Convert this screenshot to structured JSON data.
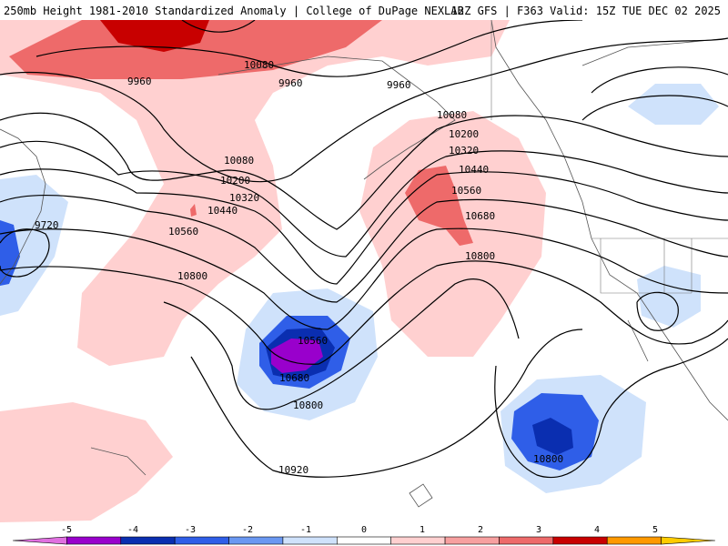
{
  "header": {
    "left": "250mb Height 1981-2010 Standardized Anomaly | College of DuPage NEXLAB",
    "right": "12Z GFS | F363 Valid: 15Z TUE DEC 02 2025"
  },
  "colorbar": {
    "ticks": [
      "-5",
      "-4",
      "-3",
      "-2",
      "-1",
      "0",
      "1",
      "2",
      "3",
      "4",
      "5"
    ],
    "colors": [
      "#e070e0",
      "#9900cc",
      "#0a2eb0",
      "#2f5ee8",
      "#6a98f2",
      "#cfe2fb",
      "#ffffff",
      "#ffd0d0",
      "#f7a0a0",
      "#ee6a6a",
      "#c80000",
      "#ff9900",
      "#ffcc00"
    ]
  },
  "contour_labels": [
    "10080",
    "9960",
    "9960",
    "9960",
    "10080",
    "10200",
    "10320",
    "10440",
    "10560",
    "10680",
    "10800",
    "10080",
    "10200",
    "10320",
    "10440",
    "10560",
    "10800",
    "9720",
    "10560",
    "10680",
    "10800",
    "10920",
    "10800"
  ]
}
